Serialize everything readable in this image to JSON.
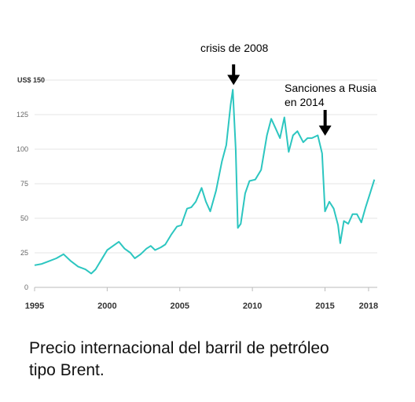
{
  "chart_data": {
    "type": "line",
    "y_unit_label": "US$ 150",
    "y_ticks": [
      "0",
      "25",
      "50",
      "75",
      "100",
      "125"
    ],
    "x_ticks": [
      "1995",
      "2000",
      "2005",
      "2010",
      "2015",
      "2018"
    ],
    "xlim": [
      1995,
      2018.6
    ],
    "ylim": [
      0,
      150
    ],
    "grid": true,
    "series": [
      {
        "color": "#2cc6c0",
        "x": [
          1995.0,
          1995.5,
          1996.0,
          1996.5,
          1997.0,
          1997.5,
          1998.0,
          1998.5,
          1998.9,
          1999.2,
          1999.6,
          2000.0,
          2000.4,
          2000.8,
          2001.2,
          2001.6,
          2001.9,
          2002.3,
          2002.7,
          2003.0,
          2003.3,
          2003.7,
          2004.0,
          2004.4,
          2004.8,
          2005.1,
          2005.5,
          2005.8,
          2006.1,
          2006.5,
          2006.8,
          2007.1,
          2007.5,
          2007.9,
          2008.2,
          2008.5,
          2008.65,
          2008.85,
          2009.0,
          2009.2,
          2009.5,
          2009.8,
          2010.2,
          2010.6,
          2011.0,
          2011.3,
          2011.6,
          2011.9,
          2012.2,
          2012.5,
          2012.8,
          2013.1,
          2013.5,
          2013.8,
          2014.1,
          2014.5,
          2014.8,
          2015.0,
          2015.3,
          2015.6,
          2015.9,
          2016.05,
          2016.3,
          2016.6,
          2016.9,
          2017.2,
          2017.5,
          2017.8,
          2018.1,
          2018.4
        ],
        "y": [
          16,
          17,
          19,
          21,
          24,
          19,
          15,
          13,
          10,
          13,
          20,
          27,
          30,
          33,
          28,
          25,
          21,
          24,
          28,
          30,
          27,
          29,
          31,
          38,
          44,
          45,
          57,
          58,
          62,
          72,
          62,
          55,
          70,
          91,
          103,
          132,
          143,
          100,
          43,
          46,
          68,
          77,
          78,
          85,
          110,
          122,
          115,
          108,
          123,
          98,
          110,
          113,
          105,
          108,
          108,
          110,
          97,
          55,
          62,
          57,
          45,
          32,
          48,
          46,
          53,
          53,
          47,
          58,
          68,
          78
        ]
      }
    ],
    "annotations": [
      {
        "text": "crisis de 2008",
        "x": 2008.65,
        "y": 143
      },
      {
        "text": "Sanciones a Rusia",
        "text2": "en 2014",
        "x": 2014.9,
        "y": 108
      }
    ]
  },
  "caption": {
    "line1": "Precio internacional del barril de petróleo",
    "line2": "tipo Brent."
  }
}
